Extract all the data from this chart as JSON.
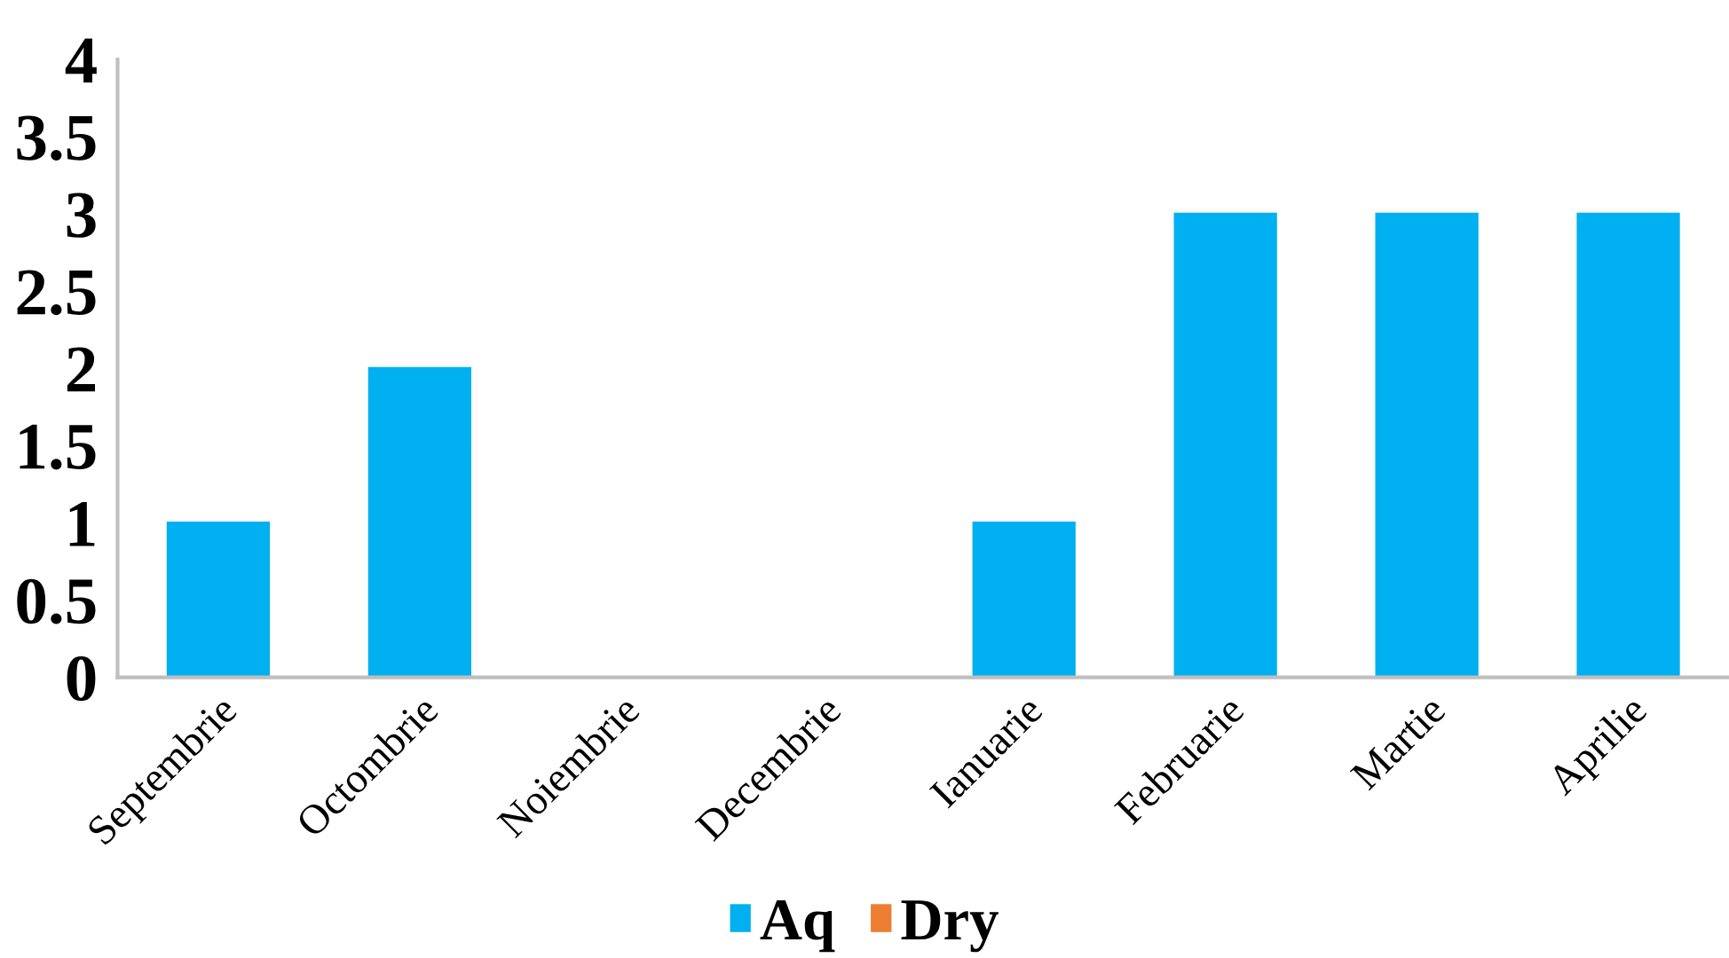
{
  "chart_data": {
    "type": "bar",
    "categories": [
      "Septembrie",
      "Octombrie",
      "Noiembrie",
      "Decembrie",
      "Ianuarie",
      "Februarie",
      "Martie",
      "Aprilie"
    ],
    "series": [
      {
        "name": "Aq",
        "color": "#00b0f0",
        "values": [
          1,
          2,
          0,
          0,
          1,
          3,
          3,
          3
        ]
      },
      {
        "name": "Dry",
        "color": "#ed7d31",
        "values": [
          null,
          null,
          null,
          null,
          null,
          null,
          null,
          null
        ]
      }
    ],
    "ylim": [
      0,
      4
    ],
    "yticks": [
      0,
      0.5,
      1,
      1.5,
      2,
      2.5,
      3,
      3.5,
      4
    ],
    "grid": false,
    "legend": "bottom"
  }
}
